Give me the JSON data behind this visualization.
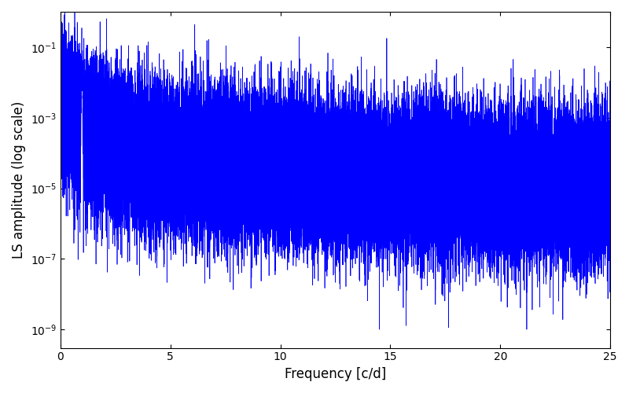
{
  "title": "",
  "xlabel": "Frequency [c/d]",
  "ylabel": "LS amplitude (log scale)",
  "xlim": [
    0,
    25
  ],
  "ylim": [
    3e-10,
    1.0
  ],
  "line_color": "#0000FF",
  "line_width": 0.5,
  "background_color": "#ffffff",
  "freq_max": 25.0,
  "n_points": 50000,
  "seed": 12345,
  "yticks": [
    1e-09,
    1e-07,
    1e-05,
    0.001,
    0.1
  ],
  "xticks": [
    0,
    5,
    10,
    15,
    20,
    25
  ]
}
